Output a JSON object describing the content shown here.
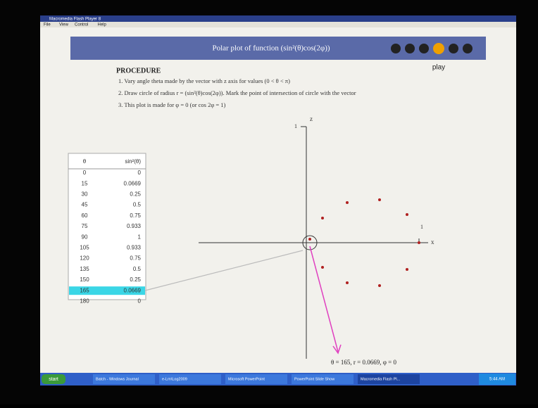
{
  "window": {
    "title": "Macromedia Flash Player 8",
    "menu": [
      "File",
      "View",
      "Control",
      "Help"
    ]
  },
  "banner": {
    "title": "Polar plot of function (sin²(θ)cos(2φ))",
    "play_label": "play"
  },
  "procedure": {
    "heading": "PROCEDURE",
    "steps": [
      "1. Vary angle theta made by the vector with z axis for values (0 < θ < π)",
      "2. Draw circle of radius  r = (sin²(θ)cos(2φ)).  Mark the point of intersection of circle with the vector",
      "3. This plot is made for φ = 0 (or cos 2φ = 1)"
    ]
  },
  "table": {
    "header": [
      "θ",
      "sin²(θ)"
    ],
    "rows": [
      [
        "0",
        "0"
      ],
      [
        "15",
        "0.0669"
      ],
      [
        "30",
        "0.25"
      ],
      [
        "45",
        "0.5"
      ],
      [
        "60",
        "0.75"
      ],
      [
        "75",
        "0.933"
      ],
      [
        "90",
        "1"
      ],
      [
        "105",
        "0.933"
      ],
      [
        "120",
        "0.75"
      ],
      [
        "135",
        "0.5"
      ],
      [
        "150",
        "0.25"
      ],
      [
        "165",
        "0.0669"
      ],
      [
        "180",
        "0"
      ]
    ],
    "highlighted_row": 11
  },
  "plot": {
    "z_label": "z",
    "x_label": "x",
    "z_tick": "1",
    "x_tick": "1",
    "status": "θ = 165, r = 0.0669, φ = 0"
  },
  "taskbar": {
    "start": "start",
    "items": [
      "Batch - Windows Journal",
      "e-Lrn\\Log2009",
      "Microsoft PowerPoint",
      "PowerPoint Slide Show",
      "Macromedia Flash Pl..."
    ],
    "clock": "5:44 AM"
  }
}
